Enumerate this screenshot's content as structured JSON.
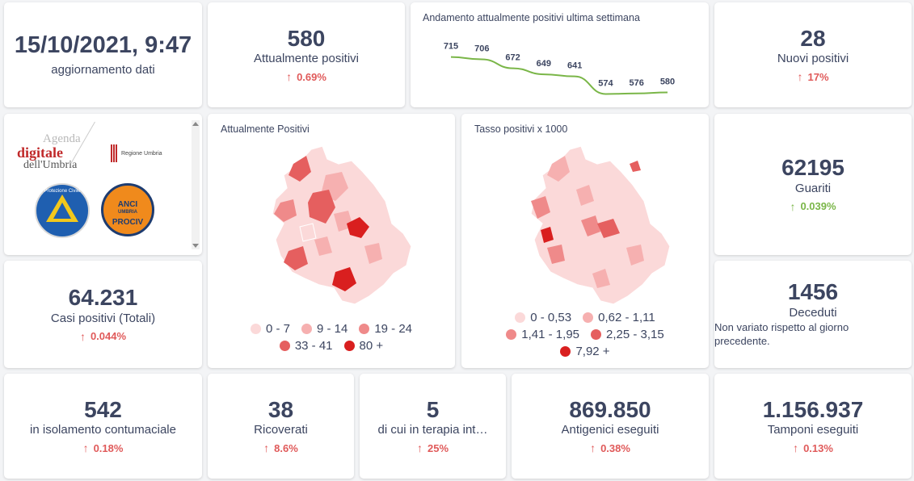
{
  "update": {
    "datetime": "15/10/2021, 9:47",
    "label": "aggiornamento dati"
  },
  "attualmente_positivi": {
    "value": "580",
    "label": "Attualmente positivi",
    "trend": "0.69%"
  },
  "weekly_chart": {
    "title": "Andamento attualmente positivi ultima settimana",
    "chart_data": {
      "type": "line",
      "values": [
        715,
        706,
        672,
        649,
        641,
        574,
        576,
        580
      ],
      "line_color": "#7ab648"
    }
  },
  "nuovi_positivi": {
    "value": "28",
    "label": "Nuovi positivi",
    "trend": "17%"
  },
  "logos": {
    "agenda_line1": "Agenda",
    "agenda_line2": "digitale",
    "agenda_line3": "dell'Umbria",
    "regione": "Regione Umbria",
    "protezione_civile": "Protezione Civile",
    "anci_top": "ANCI",
    "anci_mid": "UMBRIA",
    "anci_bottom": "PROCIV"
  },
  "map_positivi": {
    "title": "Attualmente Positivi",
    "legend": [
      {
        "label": "0 - 7",
        "color": "#fbd9d9"
      },
      {
        "label": "9 - 14",
        "color": "#f6b0b0"
      },
      {
        "label": "19 - 24",
        "color": "#ef8a8a"
      },
      {
        "label": "33 - 41",
        "color": "#e55f5f"
      },
      {
        "label": "80 +",
        "color": "#d91f1f"
      }
    ]
  },
  "map_tasso": {
    "title": "Tasso positivi x 1000",
    "legend": [
      {
        "label": "0 - 0,53",
        "color": "#fbd9d9"
      },
      {
        "label": "0,62 - 1,11",
        "color": "#f6b0b0"
      },
      {
        "label": "1,41 - 1,95",
        "color": "#ef8a8a"
      },
      {
        "label": "2,25 - 3,15",
        "color": "#e55f5f"
      },
      {
        "label": "7,92 +",
        "color": "#d91f1f"
      }
    ]
  },
  "guariti": {
    "value": "62195",
    "label": "Guariti",
    "trend": "0.039%"
  },
  "casi_totali": {
    "value": "64.231",
    "label": "Casi positivi (Totali)",
    "trend": "0.044%"
  },
  "deceduti": {
    "value": "1456",
    "label": "Deceduti",
    "note": "Non variato rispetto al giorno precedente."
  },
  "isolamento": {
    "value": "542",
    "label": "in isolamento contumaciale",
    "trend": "0.18%"
  },
  "ricoverati": {
    "value": "38",
    "label": "Ricoverati",
    "trend": "8.6%"
  },
  "terapia": {
    "value": "5",
    "label": "di cui in terapia int…",
    "trend": "25%"
  },
  "antigenici": {
    "value": "869.850",
    "label": "Antigenici eseguiti",
    "trend": "0.38%"
  },
  "tamponi": {
    "value": "1.156.937",
    "label": "Tamponi eseguiti",
    "trend": "0.13%"
  }
}
